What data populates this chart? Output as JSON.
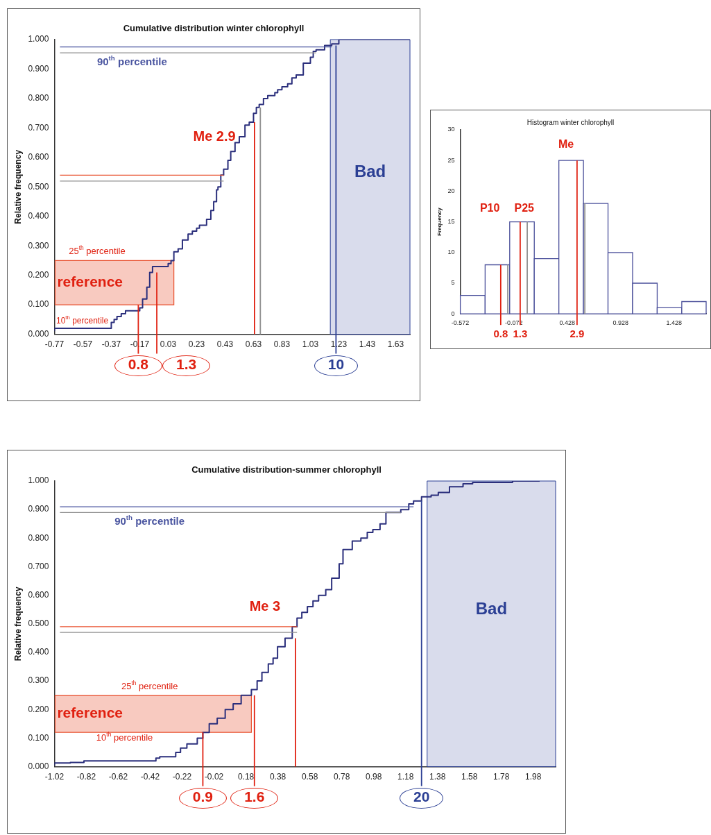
{
  "chart_data": [
    {
      "type": "step",
      "title": "Cumulative distribution winter chlorophyll",
      "ylabel": "Relative frequency",
      "color": "#2b2f7c",
      "x": [
        -0.77,
        -0.37,
        -0.35,
        -0.33,
        -0.3,
        -0.27,
        -0.17,
        -0.15,
        -0.12,
        -0.1,
        -0.08,
        0.03,
        0.05,
        0.07,
        0.1,
        0.13,
        0.17,
        0.2,
        0.23,
        0.25,
        0.3,
        0.33,
        0.35,
        0.37,
        0.38,
        0.4,
        0.42,
        0.45,
        0.47,
        0.5,
        0.53,
        0.57,
        0.6,
        0.63,
        0.65,
        0.67,
        0.7,
        0.73,
        0.78,
        0.8,
        0.83,
        0.87,
        0.9,
        0.93,
        0.98,
        1.03,
        1.05,
        1.07,
        1.13,
        1.18,
        1.23,
        1.63,
        1.73
      ],
      "values": [
        0.01,
        0.02,
        0.04,
        0.05,
        0.06,
        0.07,
        0.08,
        0.09,
        0.12,
        0.16,
        0.21,
        0.23,
        0.24,
        0.25,
        0.28,
        0.29,
        0.32,
        0.34,
        0.35,
        0.36,
        0.37,
        0.39,
        0.42,
        0.45,
        0.49,
        0.5,
        0.54,
        0.56,
        0.59,
        0.62,
        0.65,
        0.67,
        0.71,
        0.72,
        0.75,
        0.77,
        0.78,
        0.8,
        0.81,
        0.82,
        0.83,
        0.84,
        0.85,
        0.87,
        0.88,
        0.92,
        0.94,
        0.96,
        0.965,
        0.98,
        0.985,
        1.0,
        1.0
      ],
      "xlim": [
        -0.77,
        1.73
      ],
      "xticks": [
        -0.77,
        -0.57,
        -0.37,
        -0.17,
        0.03,
        0.23,
        0.43,
        0.63,
        0.83,
        1.03,
        1.23,
        1.43,
        1.63
      ],
      "ylim": [
        0,
        1
      ],
      "yticks": [
        {
          "value": 0,
          "label": "0.000"
        },
        {
          "value": 0.1,
          "label": "0.100"
        },
        {
          "value": 0.2,
          "label": "0.200"
        },
        {
          "value": 0.3,
          "label": "0.300"
        },
        {
          "value": 0.4,
          "label": "0.400"
        },
        {
          "value": 0.5,
          "label": "0.500"
        },
        {
          "value": 0.6,
          "label": "0.600"
        },
        {
          "value": 0.7,
          "label": "0.700"
        },
        {
          "value": 0.8,
          "label": "0.800"
        },
        {
          "value": 0.9,
          "label": "0.900"
        },
        {
          "value": 1,
          "label": "1.000"
        }
      ],
      "bands": [
        {
          "axis": "y",
          "from": 0.1,
          "to": 0.25,
          "label": "reference",
          "color": "#e8502e"
        },
        {
          "axis": "x",
          "from": 1.17,
          "to": 1.73,
          "label": "Bad",
          "color": "#2b3f94"
        }
      ],
      "ref_lines": [
        {
          "axis": "y",
          "value": 0.975,
          "label": "90$^{th}$ percentile",
          "color": "#4a55a0"
        },
        {
          "axis": "y",
          "value": 0.955,
          "color": "#909090"
        },
        {
          "axis": "y",
          "value": 0.54,
          "color": "#e8502e"
        },
        {
          "axis": "y",
          "value": 0.52,
          "color": "#909090"
        },
        {
          "axis": "x",
          "value": -0.18,
          "color": "#e02010"
        },
        {
          "axis": "x",
          "value": -0.05,
          "color": "#e02010"
        },
        {
          "axis": "x",
          "value": 0.637,
          "color": "#e02010"
        },
        {
          "axis": "x",
          "value": 0.678,
          "color": "#909090"
        },
        {
          "axis": "x",
          "value": 1.21,
          "color": "#2b3f94"
        }
      ],
      "annotations": [
        "Me 2.9",
        "25$^{th}$ percentile",
        "10$^{th}$ percentile",
        {
          "text": "0.8",
          "x": -0.18,
          "y": 0
        },
        {
          "text": "1.3",
          "x": -0.05,
          "y": 0
        },
        {
          "text": "10",
          "x": 1.21,
          "y": 0
        }
      ],
      "grid": false,
      "legend": false
    },
    {
      "type": "histogram",
      "title": "Histogram winter chlorophyll",
      "ylabel": "Frequency",
      "color": "#4a4f9a",
      "bins": [
        -0.572,
        -0.34,
        -0.11,
        0.12,
        0.35,
        0.58,
        0.81,
        1.04,
        1.27,
        1.5,
        1.728
      ],
      "values": [
        3,
        8,
        15,
        9,
        25,
        18,
        10,
        5,
        1,
        2
      ],
      "xlim": [
        -0.572,
        1.728
      ],
      "xticks": [
        -0.572,
        -0.072,
        0.428,
        0.928,
        1.428
      ],
      "ylim": [
        0,
        30
      ],
      "yticks": [
        0,
        5,
        10,
        15,
        20,
        25,
        30
      ],
      "ref_lines": [
        {
          "axis": "x",
          "value": -0.194,
          "color": "#e02010"
        },
        {
          "axis": "x",
          "value": -0.012,
          "color": "#e02010"
        },
        {
          "axis": "x",
          "value": 0.52,
          "color": "#e02010"
        },
        {
          "axis": "x",
          "value": -0.128,
          "color": "#909090"
        },
        {
          "axis": "x",
          "value": 0.054,
          "color": "#909090"
        },
        {
          "axis": "x",
          "value": 0.593,
          "color": "#909090"
        }
      ],
      "annotations": [
        "P10",
        "P25",
        "Me",
        {
          "text": "0.8",
          "x": -0.194,
          "y": 0
        },
        {
          "text": "1.3",
          "x": -0.012,
          "y": 0
        },
        {
          "text": "2.9",
          "x": 0.52,
          "y": 0
        }
      ],
      "grid": false,
      "legend": false
    },
    {
      "type": "step",
      "title": "Cumulative distribution-summer chlorophyll",
      "ylabel": "Relative frequency",
      "color": "#2b2f7c",
      "x": [
        -1.02,
        -0.92,
        -0.835,
        -0.384,
        -0.36,
        -0.26,
        -0.23,
        -0.19,
        -0.125,
        -0.09,
        -0.05,
        0.0,
        0.05,
        0.1,
        0.15,
        0.214,
        0.25,
        0.28,
        0.32,
        0.35,
        0.378,
        0.425,
        0.47,
        0.5,
        0.53,
        0.565,
        0.6,
        0.635,
        0.68,
        0.717,
        0.764,
        0.788,
        0.846,
        0.9,
        0.94,
        0.975,
        1.02,
        1.057,
        1.15,
        1.2,
        1.23,
        1.28,
        1.34,
        1.385,
        1.455,
        1.54,
        1.6,
        1.85,
        2.02
      ],
      "values": [
        0.003,
        0.013,
        0.015,
        0.02,
        0.03,
        0.035,
        0.05,
        0.065,
        0.08,
        0.1,
        0.12,
        0.15,
        0.17,
        0.2,
        0.22,
        0.25,
        0.27,
        0.3,
        0.33,
        0.36,
        0.38,
        0.42,
        0.45,
        0.49,
        0.52,
        0.54,
        0.56,
        0.58,
        0.6,
        0.62,
        0.66,
        0.71,
        0.76,
        0.79,
        0.8,
        0.82,
        0.83,
        0.85,
        0.89,
        0.9,
        0.92,
        0.93,
        0.945,
        0.95,
        0.96,
        0.98,
        0.99,
        0.995,
        1.0
      ],
      "xlim": [
        -1.02,
        2.12
      ],
      "xticks": [
        -1.02,
        -0.82,
        -0.62,
        -0.42,
        -0.22,
        -0.02,
        0.18,
        0.38,
        0.58,
        0.78,
        0.98,
        1.18,
        1.38,
        1.58,
        1.78,
        1.98
      ],
      "ylim": [
        0,
        1
      ],
      "yticks": [
        {
          "value": 0,
          "label": "0.000"
        },
        {
          "value": 0.1,
          "label": "0.100"
        },
        {
          "value": 0.2,
          "label": "0.200"
        },
        {
          "value": 0.3,
          "label": "0.300"
        },
        {
          "value": 0.4,
          "label": "0.400"
        },
        {
          "value": 0.5,
          "label": "0.500"
        },
        {
          "value": 0.6,
          "label": "0.600"
        },
        {
          "value": 0.7,
          "label": "0.700"
        },
        {
          "value": 0.8,
          "label": "0.800"
        },
        {
          "value": 0.9,
          "label": "0.900"
        },
        {
          "value": 1,
          "label": "1.000"
        }
      ],
      "bands": [
        {
          "axis": "y",
          "from": 0.12,
          "to": 0.25,
          "label": "reference",
          "color": "#e8502e"
        },
        {
          "axis": "x",
          "from": 1.315,
          "to": 2.12,
          "label": "Bad",
          "color": "#2b3f94"
        }
      ],
      "ref_lines": [
        {
          "axis": "y",
          "value": 0.91,
          "label": "90$^{th}$ percentile",
          "color": "#4a55a0"
        },
        {
          "axis": "y",
          "value": 0.89,
          "color": "#909090"
        },
        {
          "axis": "y",
          "value": 0.49,
          "color": "#e8502e"
        },
        {
          "axis": "y",
          "value": 0.47,
          "color": "#909090"
        },
        {
          "axis": "x",
          "value": -0.09,
          "color": "#e02010"
        },
        {
          "axis": "x",
          "value": 0.233,
          "color": "#e02010"
        },
        {
          "axis": "x",
          "value": 0.49,
          "color": "#e02010"
        },
        {
          "axis": "x",
          "value": 1.28,
          "color": "#2b3f94"
        }
      ],
      "annotations": [
        "Me 3",
        "25$^{th}$ percentile",
        "10$^{th}$ percentile",
        {
          "text": "0.9",
          "x": -0.09,
          "y": 0
        },
        {
          "text": "1.6",
          "x": 0.233,
          "y": 0
        },
        {
          "text": "20",
          "x": 1.28,
          "y": 0
        }
      ],
      "grid": false,
      "legend": false
    }
  ]
}
